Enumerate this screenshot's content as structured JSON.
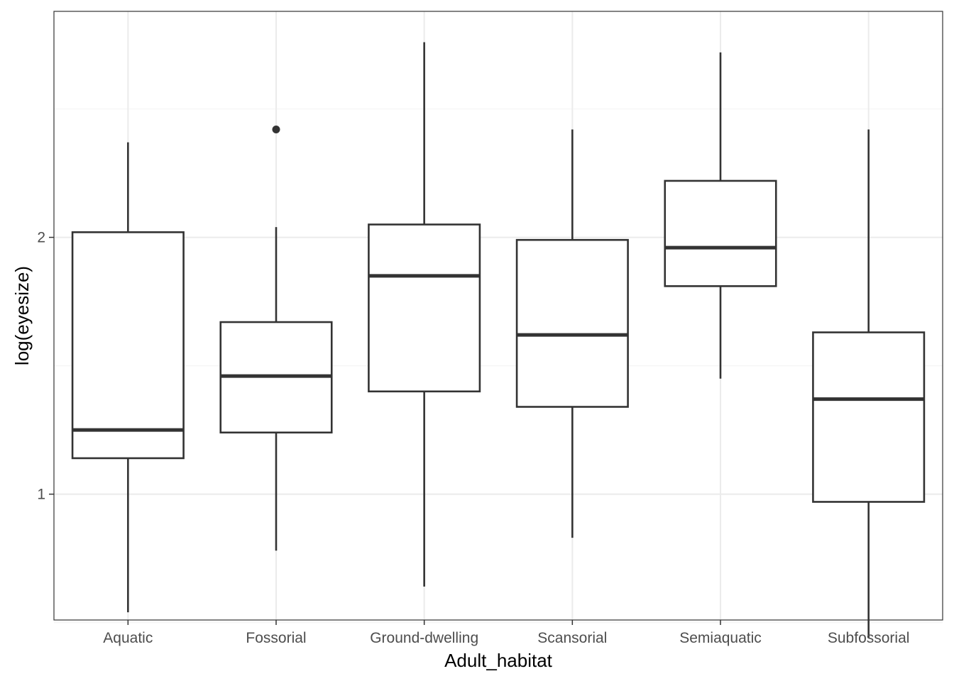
{
  "chart_data": {
    "type": "boxplot",
    "xlabel": "Adult_habitat",
    "ylabel": "log(eyesize)",
    "ylim": [
      0.51,
      2.88
    ],
    "y_ticks": [
      1,
      2
    ],
    "y_minor_ticks": [
      0.5,
      1.5,
      2.5
    ],
    "grid": true,
    "theme": "bw",
    "categories": [
      "Aquatic",
      "Fossorial",
      "Ground-dwelling",
      "Scansorial",
      "Semiaquatic",
      "Subfossorial"
    ],
    "boxes": [
      {
        "category": "Aquatic",
        "whisker_low": 0.54,
        "q1": 1.14,
        "median": 1.25,
        "q3": 2.02,
        "whisker_high": 2.37,
        "outliers": []
      },
      {
        "category": "Fossorial",
        "whisker_low": 0.78,
        "q1": 1.24,
        "median": 1.46,
        "q3": 1.67,
        "whisker_high": 2.04,
        "outliers": [
          2.42
        ]
      },
      {
        "category": "Ground-dwelling",
        "whisker_low": 0.64,
        "q1": 1.4,
        "median": 1.85,
        "q3": 2.05,
        "whisker_high": 2.76,
        "outliers": []
      },
      {
        "category": "Scansorial",
        "whisker_low": 0.83,
        "q1": 1.34,
        "median": 1.62,
        "q3": 1.99,
        "whisker_high": 2.42,
        "outliers": []
      },
      {
        "category": "Semiaquatic",
        "whisker_low": 1.45,
        "q1": 1.81,
        "median": 1.96,
        "q3": 2.22,
        "whisker_high": 2.72,
        "outliers": []
      },
      {
        "category": "Subfossorial",
        "whisker_low": 0.44,
        "q1": 0.97,
        "median": 1.37,
        "q3": 1.63,
        "whisker_high": 2.42,
        "outliers": []
      }
    ],
    "colors": {
      "box_stroke": "#333333",
      "box_fill": "#ffffff",
      "grid_major": "#ebebeb",
      "grid_minor": "#f5f5f5",
      "panel_border": "#333333",
      "tick_label": "#4d4d4d"
    }
  }
}
